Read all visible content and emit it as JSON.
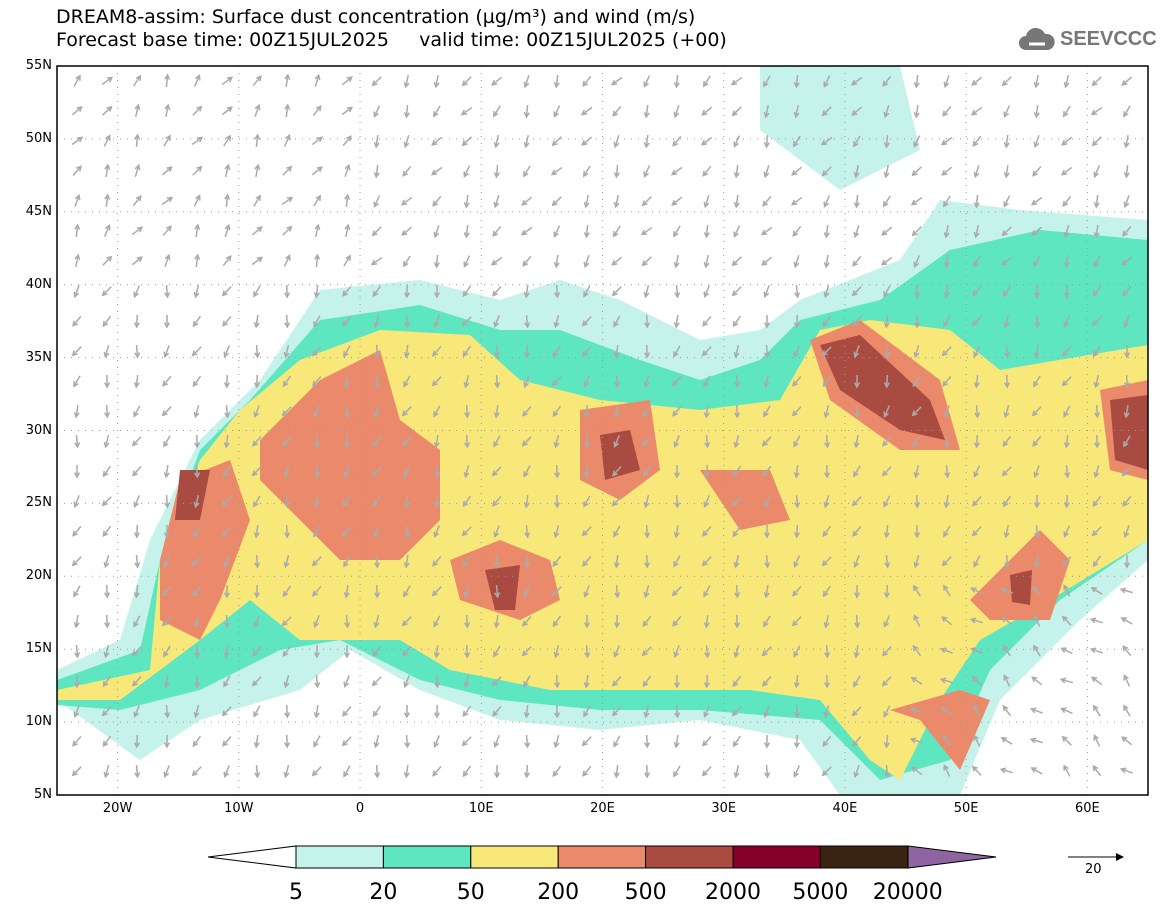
{
  "header": {
    "title": "DREAM8-assim: Surface dust concentration (µg/m³) and wind (m/s)",
    "subtitle": "Forecast base time: 00Z15JUL2025     valid time: 00Z15JUL2025 (+00)"
  },
  "logo": {
    "text": "SEEVCCC",
    "icon": "cloud-icon"
  },
  "map": {
    "lon_range": [
      -25,
      65
    ],
    "lat_range": [
      5,
      55
    ],
    "lat_labels": [
      "5N",
      "10N",
      "15N",
      "20N",
      "25N",
      "30N",
      "35N",
      "40N",
      "45N",
      "50N",
      "55N"
    ],
    "lon_labels": [
      "20W",
      "10W",
      "0",
      "10E",
      "20E",
      "30E",
      "40E",
      "50E",
      "60E"
    ]
  },
  "colorbar": {
    "colors": [
      "#c6f2ec",
      "#5ee6c1",
      "#f8e87a",
      "#ea8a6a",
      "#a94b40",
      "#86002a",
      "#3b2312",
      "#8e65a0"
    ],
    "labels": [
      "5",
      "20",
      "50",
      "200",
      "500",
      "2000",
      "5000",
      "20000"
    ]
  },
  "wind_reference": {
    "label": "20"
  }
}
